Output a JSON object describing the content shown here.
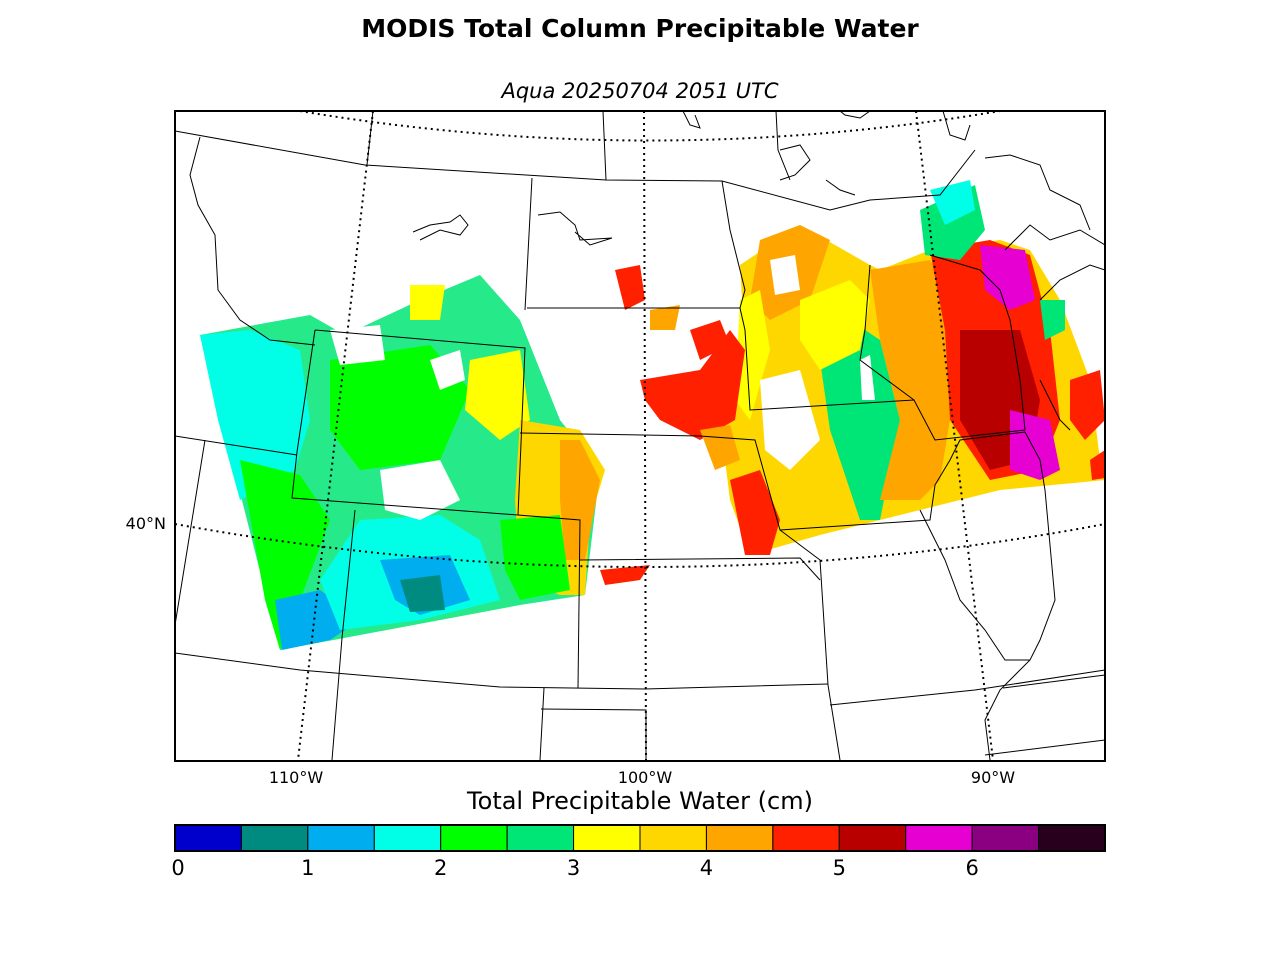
{
  "title": "MODIS Total Column Precipitable Water",
  "subtitle": "Aqua 20250704 2051 UTC",
  "map": {
    "lat_labels": [
      {
        "id": "lat-40n",
        "text": "40°N"
      }
    ],
    "lon_labels": [
      {
        "id": "lon-110w",
        "text": "110°W"
      },
      {
        "id": "lon-100w",
        "text": "100°W"
      },
      {
        "id": "lon-90w",
        "text": "90°W"
      }
    ]
  },
  "colorbar": {
    "label": "Total Precipitable Water (cm)",
    "colors": [
      "#0000cd",
      "#008b80",
      "#00aeef",
      "#00ffe6",
      "#00ff00",
      "#00e676",
      "#ffff00",
      "#ffd700",
      "#ffa500",
      "#ff2000",
      "#b80000",
      "#e600d2",
      "#8b0080",
      "#28001e"
    ],
    "range": [
      0,
      7
    ],
    "ticks": [
      {
        "id": "t0",
        "text": "0"
      },
      {
        "id": "t1",
        "text": "1"
      },
      {
        "id": "t2",
        "text": "2"
      },
      {
        "id": "t3",
        "text": "3"
      },
      {
        "id": "t4",
        "text": "4"
      },
      {
        "id": "t5",
        "text": "5"
      },
      {
        "id": "t6",
        "text": "6"
      }
    ]
  }
}
